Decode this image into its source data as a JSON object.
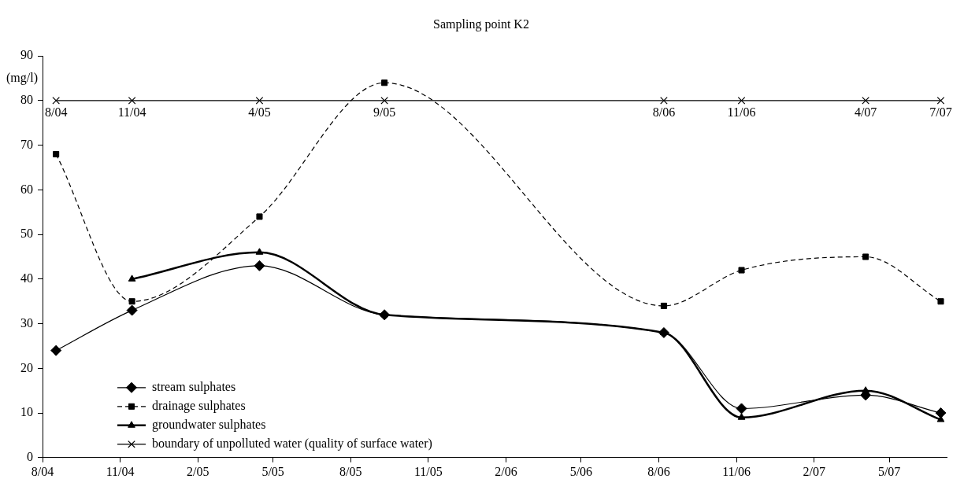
{
  "chart_data": {
    "type": "line",
    "title": "Sampling point K2",
    "ylabel": "(mg/l)",
    "x": [
      "2004-08-17",
      "2004-11-15",
      "2005-04-15",
      "2005-09-10",
      "2006-08-07",
      "2006-11-07",
      "2007-04-03",
      "2007-07-01"
    ],
    "series": [
      {
        "name": "stream sulphates",
        "color": "#000000",
        "marker": "diamond",
        "line_style": "solid",
        "values": [
          24,
          33,
          43,
          32,
          28,
          11,
          14,
          10
        ]
      },
      {
        "name": "drainage sulphates",
        "color": "#000000",
        "marker": "square",
        "line_style": "dashed",
        "values": [
          68,
          35,
          54,
          84,
          34,
          42,
          45,
          35
        ]
      },
      {
        "name": "groundwater sulphates",
        "color": "#000000",
        "marker": "triangle",
        "line_style": "solid",
        "values": [
          null,
          40,
          46,
          32,
          28,
          9,
          15,
          8.5
        ]
      },
      {
        "name": "boundary of unpolluted water (quality of surface water)",
        "color": "#000000",
        "marker": "cross",
        "line_style": "solid",
        "values": [
          80,
          80,
          80,
          80,
          80,
          80,
          80,
          80
        ]
      }
    ],
    "annotations": [
      {
        "text": "8/04",
        "x": "2004-08-17",
        "y": 80
      },
      {
        "text": "11/04",
        "x": "2004-11-15",
        "y": 80
      },
      {
        "text": "4/05",
        "x": "2005-04-15",
        "y": 80
      },
      {
        "text": "9/05",
        "x": "2005-09-10",
        "y": 80
      },
      {
        "text": "8/06",
        "x": "2006-08-07",
        "y": 80
      },
      {
        "text": "11/06",
        "x": "2006-11-07",
        "y": 80
      },
      {
        "text": "4/07",
        "x": "2007-04-03",
        "y": 80
      },
      {
        "text": "7/07",
        "x": "2007-07-01",
        "y": 80
      }
    ],
    "xlim": [
      "2004-08-01",
      "2007-07-08"
    ],
    "xticks": [
      {
        "value": "2004-08-01",
        "label": "8/04"
      },
      {
        "value": "2004-11-01",
        "label": "11/04"
      },
      {
        "value": "2005-02-01",
        "label": "2/05"
      },
      {
        "value": "2005-05-01",
        "label": "5/05"
      },
      {
        "value": "2005-08-01",
        "label": "8/05"
      },
      {
        "value": "2005-11-01",
        "label": "11/05"
      },
      {
        "value": "2006-02-01",
        "label": "2/06"
      },
      {
        "value": "2006-05-01",
        "label": "5/06"
      },
      {
        "value": "2006-08-01",
        "label": "8/06"
      },
      {
        "value": "2006-11-01",
        "label": "11/06"
      },
      {
        "value": "2007-02-01",
        "label": "2/07"
      },
      {
        "value": "2007-05-01",
        "label": "5/07"
      }
    ],
    "ylim": [
      0,
      90
    ],
    "yticks": [
      0,
      10,
      20,
      30,
      40,
      50,
      60,
      70,
      80,
      90
    ],
    "grid": false,
    "legend": "bottom left"
  }
}
